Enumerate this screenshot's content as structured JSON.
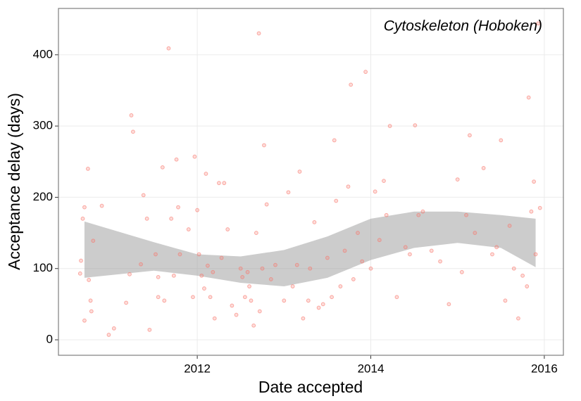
{
  "chart_data": {
    "type": "scatter",
    "title": "Cytoskeleton (Hoboken)",
    "x_label": "Date accepted",
    "y_label": "Acceptance delay (days)",
    "color": "#f8766d",
    "x": [
      2010.66,
      2010.68,
      2010.7,
      2010.74,
      2010.75,
      2010.8,
      2010.9,
      2010.7,
      2010.77,
      2010.78,
      2010.65,
      2010.98,
      2011.04,
      2011.18,
      2011.22,
      2011.26,
      2011.35,
      2011.45,
      2011.52,
      2011.55,
      2011.24,
      2011.38,
      2011.42,
      2011.55,
      2011.6,
      2011.62,
      2011.67,
      2011.7,
      2011.73,
      2011.76,
      2011.78,
      2011.8,
      2011.9,
      2011.95,
      2011.97,
      2012.0,
      2012.02,
      2012.05,
      2012.08,
      2012.1,
      2012.12,
      2012.15,
      2012.18,
      2012.2,
      2012.25,
      2012.28,
      2012.31,
      2012.35,
      2012.4,
      2012.45,
      2012.5,
      2012.52,
      2012.55,
      2012.58,
      2012.6,
      2012.62,
      2012.65,
      2012.68,
      2012.71,
      2012.72,
      2012.75,
      2012.77,
      2012.8,
      2012.85,
      2012.9,
      2013.0,
      2013.05,
      2013.1,
      2013.15,
      2013.18,
      2013.22,
      2013.28,
      2013.3,
      2013.35,
      2013.4,
      2013.45,
      2013.5,
      2013.55,
      2013.58,
      2013.6,
      2013.65,
      2013.7,
      2013.74,
      2013.77,
      2013.8,
      2013.85,
      2013.9,
      2013.94,
      2014.0,
      2014.05,
      2014.1,
      2014.15,
      2014.18,
      2014.22,
      2014.3,
      2014.4,
      2014.45,
      2014.51,
      2014.55,
      2014.6,
      2014.7,
      2014.8,
      2014.9,
      2015.0,
      2015.05,
      2015.1,
      2015.14,
      2015.2,
      2015.3,
      2015.4,
      2015.45,
      2015.5,
      2015.55,
      2015.6,
      2015.65,
      2015.7,
      2015.75,
      2015.8,
      2015.82,
      2015.85,
      2015.88,
      2015.9,
      2015.93,
      2015.95
    ],
    "values": [
      111,
      170,
      186,
      240,
      84,
      139,
      188,
      27,
      55,
      40,
      93,
      7,
      16,
      52,
      92,
      292,
      106,
      14,
      120,
      88,
      315,
      203,
      170,
      60,
      242,
      55,
      409,
      170,
      90,
      253,
      186,
      120,
      155,
      60,
      257,
      182,
      120,
      90,
      72,
      233,
      104,
      60,
      95,
      30,
      220,
      115,
      220,
      155,
      48,
      35,
      100,
      88,
      60,
      95,
      75,
      55,
      20,
      150,
      430,
      40,
      100,
      273,
      190,
      85,
      105,
      55,
      207,
      75,
      105,
      236,
      30,
      55,
      100,
      165,
      45,
      50,
      115,
      60,
      280,
      195,
      75,
      125,
      215,
      358,
      85,
      150,
      110,
      376,
      100,
      208,
      140,
      223,
      175,
      300,
      60,
      130,
      120,
      301,
      175,
      180,
      125,
      110,
      50,
      225,
      95,
      175,
      287,
      150,
      241,
      120,
      130,
      280,
      55,
      160,
      100,
      30,
      90,
      75,
      340,
      180,
      222,
      120,
      444,
      185
    ],
    "xlim": [
      2010.4,
      2016.22
    ],
    "ylim": [
      -21.7,
      465
    ],
    "xticks": [
      2012,
      2014,
      2016
    ],
    "yticks": [
      0,
      100,
      200,
      300,
      400
    ],
    "grid": true,
    "band": {
      "color": "#999999",
      "x": [
        2010.7,
        2011.5,
        2012,
        2012.5,
        2013,
        2013.5,
        2014,
        2014.5,
        2015,
        2015.5,
        2015.9
      ],
      "lower": [
        87,
        97,
        90,
        80,
        75,
        87,
        112,
        129,
        136,
        129,
        102
      ],
      "upper": [
        166,
        137,
        120,
        117,
        126,
        145,
        170,
        180,
        180,
        175,
        170
      ]
    }
  }
}
